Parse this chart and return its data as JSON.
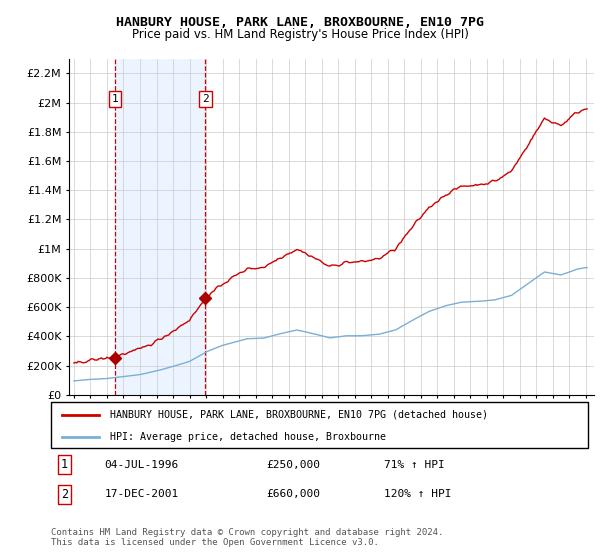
{
  "title1": "HANBURY HOUSE, PARK LANE, BROXBOURNE, EN10 7PG",
  "title2": "Price paid vs. HM Land Registry's House Price Index (HPI)",
  "sale1_date": 1996.5,
  "sale1_price": 250000,
  "sale2_date": 2001.96,
  "sale2_price": 660000,
  "ylim": [
    0,
    2300000
  ],
  "xlim_start": 1993.7,
  "xlim_end": 2025.5,
  "yticks": [
    0,
    200000,
    400000,
    600000,
    800000,
    1000000,
    1200000,
    1400000,
    1600000,
    1800000,
    2000000,
    2200000
  ],
  "ytick_labels": [
    "£0",
    "£200K",
    "£400K",
    "£600K",
    "£800K",
    "£1M",
    "£1.2M",
    "£1.4M",
    "£1.6M",
    "£1.8M",
    "£2M",
    "£2.2M"
  ],
  "xticks": [
    1994,
    1995,
    1996,
    1997,
    1998,
    1999,
    2000,
    2001,
    2002,
    2003,
    2004,
    2005,
    2006,
    2007,
    2008,
    2009,
    2010,
    2011,
    2012,
    2013,
    2014,
    2015,
    2016,
    2017,
    2018,
    2019,
    2020,
    2021,
    2022,
    2023,
    2024,
    2025
  ],
  "legend_line1": "HANBURY HOUSE, PARK LANE, BROXBOURNE, EN10 7PG (detached house)",
  "legend_line2": "HPI: Average price, detached house, Broxbourne",
  "hpi_color": "#7bafd4",
  "price_color": "#cc0000",
  "sale_dot_color": "#aa0000",
  "shade_color": "#ddeeff",
  "grid_color": "#cccccc",
  "sale_vline_color": "#cc0000",
  "footnote": "Contains HM Land Registry data © Crown copyright and database right 2024.\nThis data is licensed under the Open Government Licence v3.0."
}
